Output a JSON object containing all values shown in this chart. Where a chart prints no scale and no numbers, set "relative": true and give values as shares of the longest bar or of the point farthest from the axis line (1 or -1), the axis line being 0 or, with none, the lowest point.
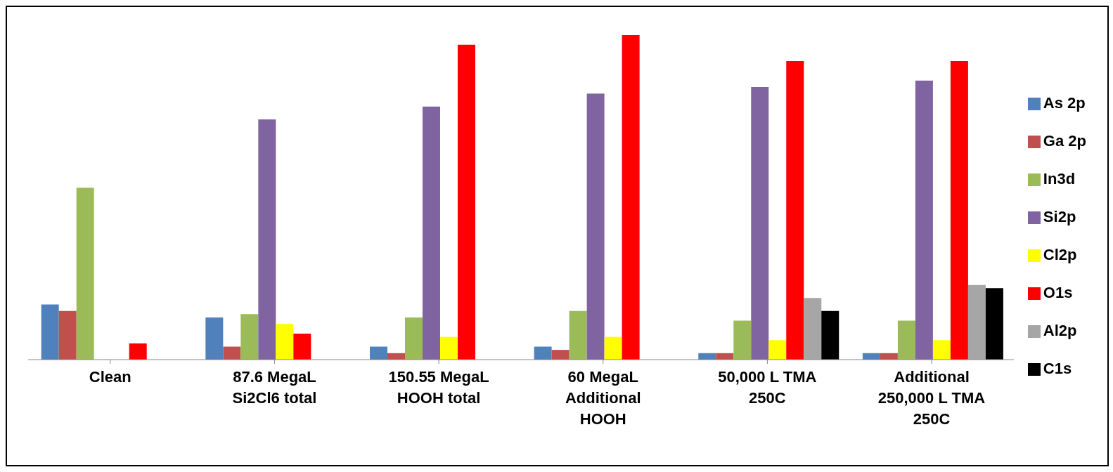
{
  "chart_data": {
    "type": "bar",
    "relative": true,
    "legend": "right",
    "grid": false,
    "categories": [
      "Clean",
      "87.6 MegaL Si2Cl6 total",
      "150.55 MegaL HOOH total",
      "60 MegaL Additional HOOH",
      "50,000 L TMA 250C",
      "Additional 250,000 L TMA 250C"
    ],
    "series": [
      {
        "name": "As 2p",
        "color": "#4f81bd",
        "values": [
          0.17,
          0.13,
          0.04,
          0.04,
          0.02,
          0.02
        ]
      },
      {
        "name": "Ga 2p",
        "color": "#c0504d",
        "values": [
          0.15,
          0.04,
          0.02,
          0.03,
          0.02,
          0.02
        ]
      },
      {
        "name": "In3d",
        "color": "#9bbb59",
        "values": [
          0.53,
          0.14,
          0.13,
          0.15,
          0.12,
          0.12
        ]
      },
      {
        "name": "Si2p",
        "color": "#8064a2",
        "values": [
          null,
          0.74,
          0.78,
          0.82,
          0.84,
          0.86
        ]
      },
      {
        "name": "Cl2p",
        "color": "#ffff00",
        "values": [
          null,
          0.11,
          0.07,
          0.07,
          0.06,
          0.06
        ]
      },
      {
        "name": "O1s",
        "color": "#ff0000",
        "values": [
          0.05,
          0.08,
          0.97,
          1,
          0.92,
          0.92
        ]
      },
      {
        "name": "Al2p",
        "color": "#a6a6a6",
        "values": [
          null,
          null,
          null,
          null,
          0.19,
          0.23
        ]
      },
      {
        "name": "C1s",
        "color": "#000000",
        "values": [
          null,
          null,
          null,
          null,
          0.15,
          0.22
        ]
      }
    ]
  }
}
